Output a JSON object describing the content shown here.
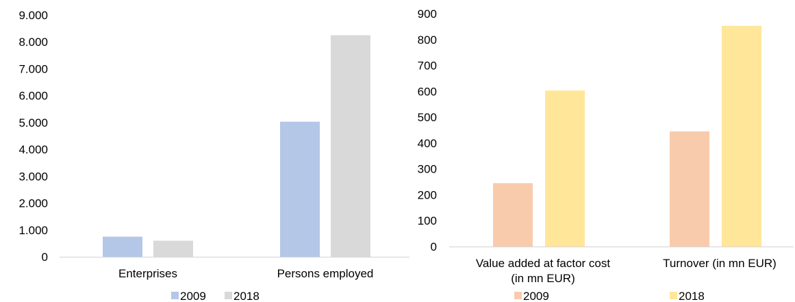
{
  "chart_data": [
    {
      "type": "bar",
      "categories": [
        "Enterprises",
        "Persons employed"
      ],
      "series": [
        {
          "name": "2009",
          "values": [
            750,
            5030
          ]
        },
        {
          "name": "2018",
          "values": [
            600,
            8250
          ]
        }
      ],
      "y_ticks": [
        "0",
        "1.000",
        "2.000",
        "3.000",
        "4.000",
        "5.000",
        "6.000",
        "7.000",
        "8.000",
        "9.000"
      ],
      "ylim": [
        0,
        9000
      ],
      "colors": [
        "#b4c7e7",
        "#d9d9d9"
      ],
      "legend_position": "bottom",
      "grid": false
    },
    {
      "type": "bar",
      "categories": [
        "Value added at factor cost (in mn EUR)",
        "Turnover (in mn EUR)"
      ],
      "category_lines": [
        [
          "Value added at factor cost",
          "(in mn EUR)"
        ],
        [
          "Turnover (in mn EUR)"
        ]
      ],
      "series": [
        {
          "name": "2009",
          "values": [
            245,
            445
          ]
        },
        {
          "name": "2018",
          "values": [
            603,
            853
          ]
        }
      ],
      "y_ticks": [
        "0",
        "100",
        "200",
        "300",
        "400",
        "500",
        "600",
        "700",
        "800",
        "900"
      ],
      "ylim": [
        0,
        900
      ],
      "colors": [
        "#f8cbad",
        "#ffe699"
      ],
      "legend_position": "bottom",
      "grid": false
    }
  ]
}
